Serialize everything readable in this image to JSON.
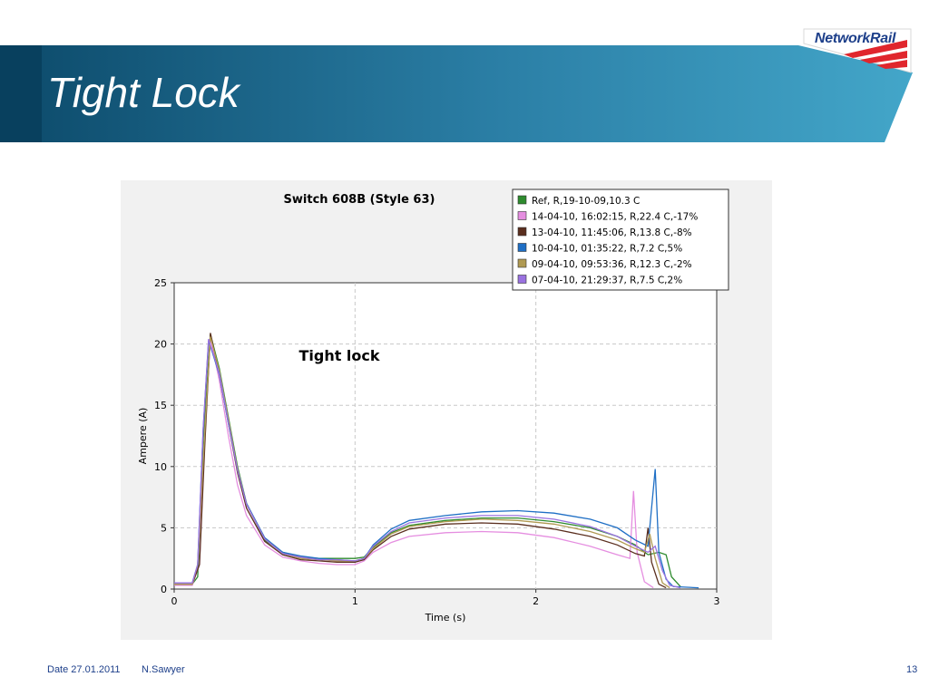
{
  "slide": {
    "title": "Tight Lock",
    "logo": "NetworkRail",
    "footer": {
      "date": "Date 27.01.2011",
      "author": "N.Sawyer",
      "page": "13"
    }
  },
  "colors": {
    "banner_dark": "#0c4a6a",
    "banner_light": "#43a6c9",
    "logo_red": "#e0262d",
    "logo_blue": "#1d3f8a"
  },
  "chart_data": {
    "type": "line",
    "title": "Switch 608B (Style 63)",
    "xlabel": "Time (s)",
    "ylabel": "Ampere (A)",
    "annotation": "Tight lock",
    "xlim": [
      0,
      3
    ],
    "ylim": [
      0,
      25
    ],
    "xticks": [
      "0",
      "1",
      "2",
      "3"
    ],
    "yticks": [
      "0",
      "5",
      "10",
      "15",
      "20",
      "25"
    ],
    "grid": true,
    "legend_position": "top-right",
    "series": [
      {
        "name": "Ref, R,19-10-09,10.3 C",
        "color": "#2e8b2e",
        "points": [
          [
            0,
            0.4
          ],
          [
            0.1,
            0.4
          ],
          [
            0.13,
            1
          ],
          [
            0.16,
            12
          ],
          [
            0.2,
            20.8
          ],
          [
            0.25,
            18
          ],
          [
            0.3,
            14
          ],
          [
            0.35,
            10
          ],
          [
            0.4,
            7
          ],
          [
            0.5,
            4
          ],
          [
            0.6,
            3
          ],
          [
            0.7,
            2.6
          ],
          [
            0.8,
            2.5
          ],
          [
            0.9,
            2.5
          ],
          [
            1.0,
            2.5
          ],
          [
            1.05,
            2.6
          ],
          [
            1.1,
            3.4
          ],
          [
            1.2,
            4.6
          ],
          [
            1.3,
            5.2
          ],
          [
            1.5,
            5.6
          ],
          [
            1.7,
            5.8
          ],
          [
            1.9,
            5.8
          ],
          [
            2.1,
            5.5
          ],
          [
            2.3,
            5.0
          ],
          [
            2.45,
            4.3
          ],
          [
            2.55,
            3.6
          ],
          [
            2.62,
            2.8
          ],
          [
            2.68,
            3.0
          ],
          [
            2.72,
            2.8
          ],
          [
            2.75,
            1.0
          ],
          [
            2.8,
            0.2
          ]
        ]
      },
      {
        "name": "14-04-10, 16:02:15, R,22.4 C,-17%",
        "color": "#e58ee0",
        "points": [
          [
            0,
            0.3
          ],
          [
            0.1,
            0.3
          ],
          [
            0.14,
            2
          ],
          [
            0.17,
            13
          ],
          [
            0.2,
            20.5
          ],
          [
            0.25,
            17
          ],
          [
            0.3,
            12.5
          ],
          [
            0.35,
            8.5
          ],
          [
            0.4,
            6
          ],
          [
            0.5,
            3.6
          ],
          [
            0.6,
            2.6
          ],
          [
            0.7,
            2.3
          ],
          [
            0.8,
            2.1
          ],
          [
            0.9,
            2.0
          ],
          [
            1.0,
            2.0
          ],
          [
            1.05,
            2.3
          ],
          [
            1.1,
            3.0
          ],
          [
            1.2,
            3.8
          ],
          [
            1.3,
            4.3
          ],
          [
            1.5,
            4.6
          ],
          [
            1.7,
            4.7
          ],
          [
            1.9,
            4.6
          ],
          [
            2.1,
            4.2
          ],
          [
            2.3,
            3.5
          ],
          [
            2.45,
            2.8
          ],
          [
            2.52,
            2.5
          ],
          [
            2.54,
            8.0
          ],
          [
            2.56,
            3.0
          ],
          [
            2.6,
            0.6
          ],
          [
            2.65,
            0.1
          ]
        ]
      },
      {
        "name": "13-04-10, 11:45:06, R,13.8 C,-8%",
        "color": "#5a2e1e",
        "points": [
          [
            0,
            0.4
          ],
          [
            0.1,
            0.4
          ],
          [
            0.14,
            2
          ],
          [
            0.17,
            12
          ],
          [
            0.2,
            20.9
          ],
          [
            0.25,
            17.5
          ],
          [
            0.3,
            13.5
          ],
          [
            0.35,
            9.5
          ],
          [
            0.4,
            6.6
          ],
          [
            0.5,
            3.9
          ],
          [
            0.6,
            2.8
          ],
          [
            0.7,
            2.4
          ],
          [
            0.8,
            2.3
          ],
          [
            0.9,
            2.2
          ],
          [
            1.0,
            2.2
          ],
          [
            1.05,
            2.4
          ],
          [
            1.1,
            3.2
          ],
          [
            1.2,
            4.3
          ],
          [
            1.3,
            4.9
          ],
          [
            1.5,
            5.3
          ],
          [
            1.7,
            5.4
          ],
          [
            1.9,
            5.3
          ],
          [
            2.1,
            4.9
          ],
          [
            2.3,
            4.3
          ],
          [
            2.45,
            3.6
          ],
          [
            2.55,
            2.9
          ],
          [
            2.6,
            2.7
          ],
          [
            2.62,
            5.0
          ],
          [
            2.64,
            2.2
          ],
          [
            2.68,
            0.4
          ],
          [
            2.72,
            0.1
          ]
        ]
      },
      {
        "name": "10-04-10, 01:35:22, R,7.2 C,5%",
        "color": "#1f6fc5",
        "points": [
          [
            0,
            0.5
          ],
          [
            0.1,
            0.5
          ],
          [
            0.13,
            2
          ],
          [
            0.16,
            13
          ],
          [
            0.19,
            20.3
          ],
          [
            0.25,
            17.5
          ],
          [
            0.3,
            13.5
          ],
          [
            0.35,
            9.8
          ],
          [
            0.4,
            7
          ],
          [
            0.5,
            4.2
          ],
          [
            0.6,
            3.0
          ],
          [
            0.7,
            2.7
          ],
          [
            0.8,
            2.5
          ],
          [
            0.9,
            2.4
          ],
          [
            1.0,
            2.3
          ],
          [
            1.05,
            2.5
          ],
          [
            1.1,
            3.6
          ],
          [
            1.2,
            4.9
          ],
          [
            1.3,
            5.6
          ],
          [
            1.5,
            6.0
          ],
          [
            1.7,
            6.3
          ],
          [
            1.9,
            6.4
          ],
          [
            2.1,
            6.2
          ],
          [
            2.3,
            5.7
          ],
          [
            2.45,
            5.0
          ],
          [
            2.55,
            4.0
          ],
          [
            2.62,
            3.5
          ],
          [
            2.66,
            9.8
          ],
          [
            2.68,
            3.0
          ],
          [
            2.72,
            0.8
          ],
          [
            2.76,
            0.2
          ],
          [
            2.9,
            0.1
          ]
        ]
      },
      {
        "name": "09-04-10, 09:53:36, R,12.3 C,-2%",
        "color": "#b09a52",
        "points": [
          [
            0,
            0.4
          ],
          [
            0.1,
            0.4
          ],
          [
            0.13,
            2
          ],
          [
            0.17,
            13
          ],
          [
            0.2,
            20.6
          ],
          [
            0.25,
            17.8
          ],
          [
            0.3,
            13.8
          ],
          [
            0.35,
            9.8
          ],
          [
            0.4,
            6.9
          ],
          [
            0.5,
            4.1
          ],
          [
            0.6,
            2.9
          ],
          [
            0.7,
            2.5
          ],
          [
            0.8,
            2.4
          ],
          [
            0.9,
            2.3
          ],
          [
            1.0,
            2.3
          ],
          [
            1.05,
            2.5
          ],
          [
            1.1,
            3.3
          ],
          [
            1.2,
            4.5
          ],
          [
            1.3,
            5.1
          ],
          [
            1.5,
            5.5
          ],
          [
            1.7,
            5.7
          ],
          [
            1.9,
            5.6
          ],
          [
            2.1,
            5.3
          ],
          [
            2.3,
            4.7
          ],
          [
            2.45,
            4.0
          ],
          [
            2.55,
            3.3
          ],
          [
            2.6,
            3.0
          ],
          [
            2.63,
            4.5
          ],
          [
            2.66,
            2.5
          ],
          [
            2.7,
            0.5
          ],
          [
            2.74,
            0.1
          ]
        ]
      },
      {
        "name": "07-04-10, 21:29:37, R,7.5 C,2%",
        "color": "#9a72e0",
        "points": [
          [
            0,
            0.5
          ],
          [
            0.1,
            0.5
          ],
          [
            0.13,
            2
          ],
          [
            0.16,
            13
          ],
          [
            0.19,
            20.4
          ],
          [
            0.25,
            17.6
          ],
          [
            0.3,
            13.6
          ],
          [
            0.35,
            9.7
          ],
          [
            0.4,
            6.9
          ],
          [
            0.5,
            4.1
          ],
          [
            0.6,
            2.9
          ],
          [
            0.7,
            2.6
          ],
          [
            0.8,
            2.4
          ],
          [
            0.9,
            2.4
          ],
          [
            1.0,
            2.3
          ],
          [
            1.05,
            2.5
          ],
          [
            1.1,
            3.5
          ],
          [
            1.2,
            4.7
          ],
          [
            1.3,
            5.4
          ],
          [
            1.5,
            5.8
          ],
          [
            1.7,
            6.0
          ],
          [
            1.9,
            6.0
          ],
          [
            2.1,
            5.7
          ],
          [
            2.3,
            5.1
          ],
          [
            2.45,
            4.3
          ],
          [
            2.55,
            3.5
          ],
          [
            2.62,
            3.0
          ],
          [
            2.66,
            3.5
          ],
          [
            2.7,
            1.5
          ],
          [
            2.74,
            0.3
          ],
          [
            2.8,
            0.1
          ]
        ]
      }
    ]
  }
}
